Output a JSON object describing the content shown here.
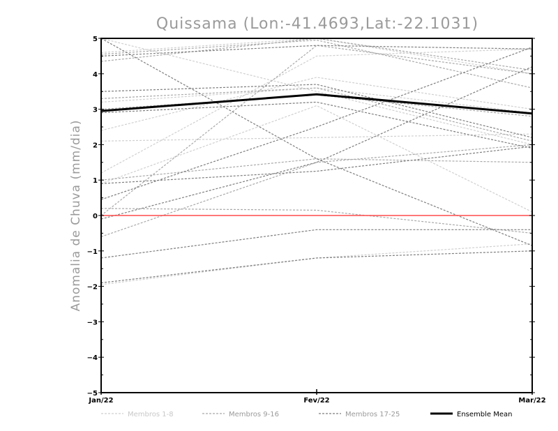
{
  "chart_data": {
    "type": "line",
    "title": "Quissama (Lon:-41.4693,Lat:-22.1031)",
    "ylabel": "Anomalia de Chuva (mm/dia)",
    "xlabel": "",
    "categories": [
      "Jan/22",
      "Fev/22",
      "Mar/22"
    ],
    "ylim": [
      -5,
      5
    ],
    "yticks": [
      -5,
      -4,
      -3,
      -2,
      -1,
      0,
      1,
      2,
      3,
      4,
      5
    ],
    "reference_line": {
      "value": 0,
      "color": "#ff4b4b"
    },
    "groups": [
      {
        "name": "Membros 1-8",
        "color": "#cfcfcf",
        "series": [
          {
            "values": [
              2.4,
              3.9,
              3.0
            ]
          },
          {
            "values": [
              1.2,
              4.5,
              4.7
            ]
          },
          {
            "values": [
              3.2,
              3.6,
              2.9
            ]
          },
          {
            "values": [
              4.6,
              5.0,
              4.0
            ]
          },
          {
            "values": [
              2.1,
              2.2,
              2.3
            ]
          },
          {
            "values": [
              -1.95,
              -1.2,
              -0.8
            ]
          },
          {
            "values": [
              0.9,
              3.1,
              0.1
            ]
          },
          {
            "values": [
              5.0,
              3.5,
              2.0
            ]
          }
        ]
      },
      {
        "name": "Membros 9-16",
        "color": "#a8a8a8",
        "series": [
          {
            "values": [
              4.35,
              5.0,
              4.1
            ]
          },
          {
            "values": [
              3.3,
              3.6,
              2.1
            ]
          },
          {
            "values": [
              0.2,
              0.15,
              -0.5
            ]
          },
          {
            "values": [
              -0.6,
              1.5,
              2.0
            ]
          },
          {
            "values": [
              0.0,
              4.8,
              4.0
            ]
          },
          {
            "values": [
              3.0,
              3.4,
              2.8
            ]
          },
          {
            "values": [
              1.0,
              1.6,
              1.5
            ]
          },
          {
            "values": [
              4.55,
              4.95,
              3.6
            ]
          }
        ]
      },
      {
        "name": "Membros 17-25",
        "color": "#7d7d7d",
        "series": [
          {
            "values": [
              4.5,
              4.8,
              4.7
            ]
          },
          {
            "values": [
              3.5,
              3.7,
              2.2
            ]
          },
          {
            "values": [
              2.9,
              3.2,
              1.9
            ]
          },
          {
            "values": [
              0.9,
              1.25,
              1.95
            ]
          },
          {
            "values": [
              -1.2,
              -0.4,
              -0.4
            ]
          },
          {
            "values": [
              -1.9,
              -1.2,
              -1.0
            ]
          },
          {
            "values": [
              0.45,
              2.5,
              4.75
            ]
          },
          {
            "values": [
              5.0,
              1.6,
              -0.85
            ]
          },
          {
            "values": [
              -0.1,
              1.5,
              4.2
            ]
          }
        ]
      }
    ],
    "ensemble_mean": {
      "name": "Ensemble Mean",
      "color": "#000000",
      "values": [
        2.95,
        3.42,
        2.88
      ]
    },
    "legend": {
      "placement": "bottom"
    },
    "grid": false
  }
}
